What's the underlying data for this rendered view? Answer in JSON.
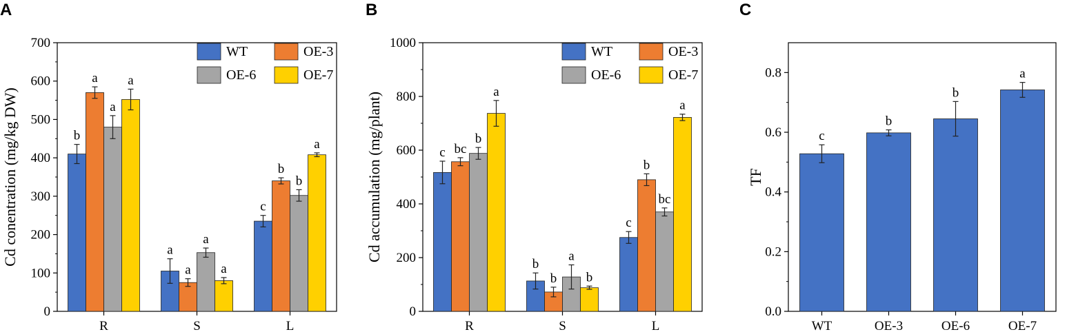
{
  "colors": {
    "WT": "#4472C4",
    "OE-3": "#ED7D31",
    "OE-6": "#A5A5A5",
    "OE-7": "#FFD000",
    "axis": "#000000"
  },
  "chart_data": [
    {
      "panel": "A",
      "type": "bar",
      "title": "",
      "xlabel": "",
      "ylabel": "Cd conentration (mg/kg DW)",
      "ylim": [
        0,
        700
      ],
      "yticks": [
        0,
        100,
        200,
        300,
        400,
        500,
        600,
        700
      ],
      "categories": [
        "R",
        "S",
        "L"
      ],
      "legend": {
        "entries": [
          "WT",
          "OE-3",
          "OE-6",
          "OE-7"
        ],
        "placement": "top-right"
      },
      "series": [
        {
          "name": "WT",
          "values": [
            410,
            105,
            235
          ],
          "errors": [
            25,
            32,
            15
          ],
          "letters": [
            "b",
            "a",
            "c"
          ]
        },
        {
          "name": "OE-3",
          "values": [
            570,
            75,
            340
          ],
          "errors": [
            15,
            10,
            8
          ],
          "letters": [
            "a",
            "a",
            "b"
          ]
        },
        {
          "name": "OE-6",
          "values": [
            480,
            153,
            302
          ],
          "errors": [
            30,
            12,
            15
          ],
          "letters": [
            "a",
            "a",
            "b"
          ]
        },
        {
          "name": "OE-7",
          "values": [
            552,
            80,
            408
          ],
          "errors": [
            27,
            8,
            5
          ],
          "letters": [
            "a",
            "a",
            "a"
          ]
        }
      ]
    },
    {
      "panel": "B",
      "type": "bar",
      "title": "",
      "xlabel": "",
      "ylabel": "Cd accumulation (mg/plant)",
      "ylim": [
        0,
        1000
      ],
      "yticks": [
        0,
        200,
        400,
        600,
        800,
        1000
      ],
      "categories": [
        "R",
        "S",
        "L"
      ],
      "legend": {
        "entries": [
          "WT",
          "OE-3",
          "OE-6",
          "OE-7"
        ],
        "placement": "top-right"
      },
      "series": [
        {
          "name": "WT",
          "values": [
            517,
            113,
            275
          ],
          "errors": [
            42,
            30,
            22
          ],
          "letters": [
            "c",
            "b",
            "c"
          ]
        },
        {
          "name": "OE-3",
          "values": [
            557,
            72,
            490
          ],
          "errors": [
            15,
            18,
            22
          ],
          "letters": [
            "bc",
            "b",
            "b"
          ]
        },
        {
          "name": "OE-6",
          "values": [
            588,
            128,
            370
          ],
          "errors": [
            22,
            45,
            15
          ],
          "letters": [
            "b",
            "a",
            "bc"
          ]
        },
        {
          "name": "OE-7",
          "values": [
            737,
            88,
            722
          ],
          "errors": [
            48,
            6,
            12
          ],
          "letters": [
            "a",
            "b",
            "a"
          ]
        }
      ]
    },
    {
      "panel": "C",
      "type": "bar",
      "title": "",
      "xlabel": "",
      "ylabel": "TF",
      "ylim": [
        0,
        0.9
      ],
      "yticks": [
        0.0,
        0.2,
        0.4,
        0.6,
        0.8
      ],
      "ytick_labels": [
        "0.0",
        "0.2",
        "0.4",
        "0.6",
        "0.8"
      ],
      "categories": [
        "WT",
        "OE-3",
        "OE-6",
        "OE-7"
      ],
      "series": [
        {
          "name": "TF",
          "values": [
            0.528,
            0.598,
            0.645,
            0.742
          ],
          "errors": [
            0.03,
            0.01,
            0.058,
            0.025
          ],
          "letters": [
            "c",
            "b",
            "b",
            "a"
          ]
        }
      ]
    }
  ]
}
